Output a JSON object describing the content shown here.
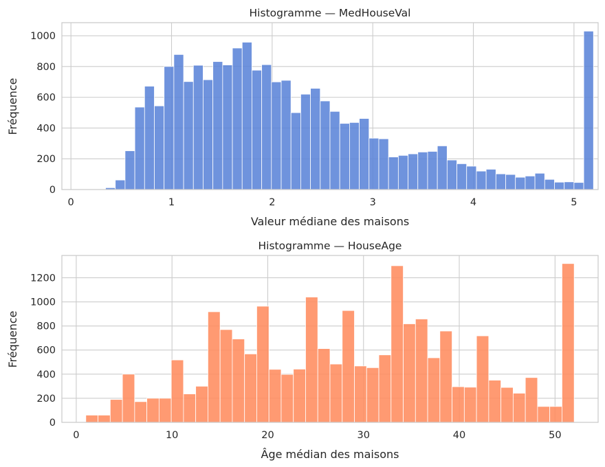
{
  "chart_data": [
    {
      "type": "bar",
      "title": "Histogramme — MedHouseVal",
      "xlabel": "Valeur médiane des maisons",
      "ylabel": "Fréquence",
      "xlim": [
        -0.09,
        5.24
      ],
      "ylim": [
        0,
        1085
      ],
      "xticks": [
        0,
        1,
        2,
        3,
        4,
        5
      ],
      "yticks": [
        0,
        200,
        400,
        600,
        800,
        1000
      ],
      "xtick_labels": [
        "0",
        "1",
        "2",
        "3",
        "4",
        "5"
      ],
      "ytick_labels": [
        "0",
        "200",
        "400",
        "600",
        "800",
        "1000"
      ],
      "bin_start": 0.15,
      "bin_width": 0.097,
      "values": [
        4,
        4,
        12,
        62,
        252,
        536,
        672,
        544,
        800,
        878,
        702,
        808,
        714,
        832,
        810,
        920,
        958,
        776,
        812,
        700,
        710,
        500,
        620,
        658,
        576,
        508,
        430,
        436,
        462,
        334,
        330,
        212,
        222,
        232,
        244,
        248,
        284,
        192,
        168,
        152,
        120,
        132,
        102,
        98,
        80,
        88,
        106,
        66,
        48,
        50,
        46,
        1030
      ],
      "color": "#5b84d8"
    },
    {
      "type": "bar",
      "title": "Histogramme — HouseAge",
      "xlabel": "Âge médian des maisons",
      "ylabel": "Fréquence",
      "xlim": [
        -1.5,
        54.5
      ],
      "ylim": [
        0,
        1385
      ],
      "xticks": [
        0,
        10,
        20,
        30,
        40,
        50
      ],
      "yticks": [
        0,
        200,
        400,
        600,
        800,
        1000,
        1200
      ],
      "xtick_labels": [
        "0",
        "10",
        "20",
        "30",
        "40",
        "50"
      ],
      "ytick_labels": [
        "0",
        "200",
        "400",
        "600",
        "800",
        "1000",
        "1200"
      ],
      "bin_start": 1,
      "bin_width": 1.275,
      "values": [
        60,
        60,
        190,
        400,
        172,
        200,
        200,
        518,
        236,
        300,
        918,
        770,
        692,
        568,
        964,
        440,
        398,
        442,
        1040,
        612,
        484,
        928,
        468,
        454,
        560,
        1300,
        818,
        858,
        536,
        758,
        296,
        292,
        718,
        350,
        290,
        242,
        372,
        132,
        132,
        1318
      ],
      "color": "#ff8c5e"
    }
  ]
}
